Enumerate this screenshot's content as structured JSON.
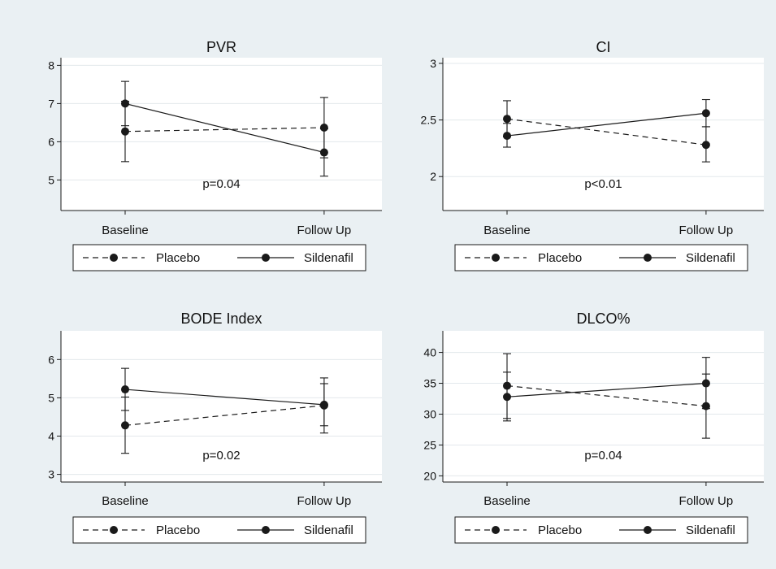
{
  "colors": {
    "outer_bg": "#eaf0f3",
    "plot_bg": "#ffffff",
    "grid": "#e3e8ec",
    "ink": "#1a1a1a"
  },
  "chart_data": [
    {
      "type": "line",
      "title": "PVR",
      "categories": [
        "Baseline",
        "Follow Up"
      ],
      "ylim": [
        4.2,
        8.2
      ],
      "yticks": [
        5,
        6,
        7,
        8
      ],
      "annotation": "p=0.04",
      "grid": true,
      "legend_position": "bottom",
      "series": [
        {
          "name": "Placebo",
          "style": "dashed",
          "values": [
            6.27,
            6.37
          ],
          "error_low": [
            5.48,
            5.58
          ],
          "error_high": [
            7.06,
            7.16
          ]
        },
        {
          "name": "Sildenafil",
          "style": "solid",
          "values": [
            7.0,
            5.72
          ],
          "error_low": [
            6.42,
            5.1
          ],
          "error_high": [
            7.58,
            6.34
          ]
        }
      ]
    },
    {
      "type": "line",
      "title": "CI",
      "categories": [
        "Baseline",
        "Follow Up"
      ],
      "ylim": [
        1.7,
        3.05
      ],
      "yticks": [
        "2",
        "2.5",
        "3"
      ],
      "annotation": "p<0.01",
      "grid": true,
      "legend_position": "bottom",
      "series": [
        {
          "name": "Placebo",
          "style": "dashed",
          "values": [
            2.51,
            2.28
          ],
          "error_low": [
            2.35,
            2.13
          ],
          "error_high": [
            2.67,
            2.44
          ]
        },
        {
          "name": "Sildenafil",
          "style": "solid",
          "values": [
            2.36,
            2.56
          ],
          "error_low": [
            2.26,
            2.44
          ],
          "error_high": [
            2.47,
            2.68
          ]
        }
      ]
    },
    {
      "type": "line",
      "title": "BODE Index",
      "categories": [
        "Baseline",
        "Follow Up"
      ],
      "ylim": [
        2.8,
        6.75
      ],
      "yticks": [
        3,
        4,
        5,
        6
      ],
      "annotation": "p=0.02",
      "grid": true,
      "legend_position": "bottom",
      "series": [
        {
          "name": "Placebo",
          "style": "dashed",
          "values": [
            4.28,
            4.8
          ],
          "error_low": [
            3.55,
            4.08
          ],
          "error_high": [
            5.02,
            5.52
          ]
        },
        {
          "name": "Sildenafil",
          "style": "solid",
          "values": [
            5.22,
            4.82
          ],
          "error_low": [
            4.67,
            4.27
          ],
          "error_high": [
            5.77,
            5.37
          ]
        }
      ]
    },
    {
      "type": "line",
      "title": "DLCO%",
      "categories": [
        "Baseline",
        "Follow Up"
      ],
      "ylim": [
        19,
        43.5
      ],
      "yticks": [
        20,
        25,
        30,
        35,
        40
      ],
      "annotation": "p=0.04",
      "grid": true,
      "legend_position": "bottom",
      "series": [
        {
          "name": "Placebo",
          "style": "dashed",
          "values": [
            34.6,
            31.3
          ],
          "error_low": [
            29.3,
            26.1
          ],
          "error_high": [
            39.8,
            36.5
          ]
        },
        {
          "name": "Sildenafil",
          "style": "solid",
          "values": [
            32.8,
            35.0
          ],
          "error_low": [
            28.9,
            30.9
          ],
          "error_high": [
            36.8,
            39.2
          ]
        }
      ]
    }
  ]
}
